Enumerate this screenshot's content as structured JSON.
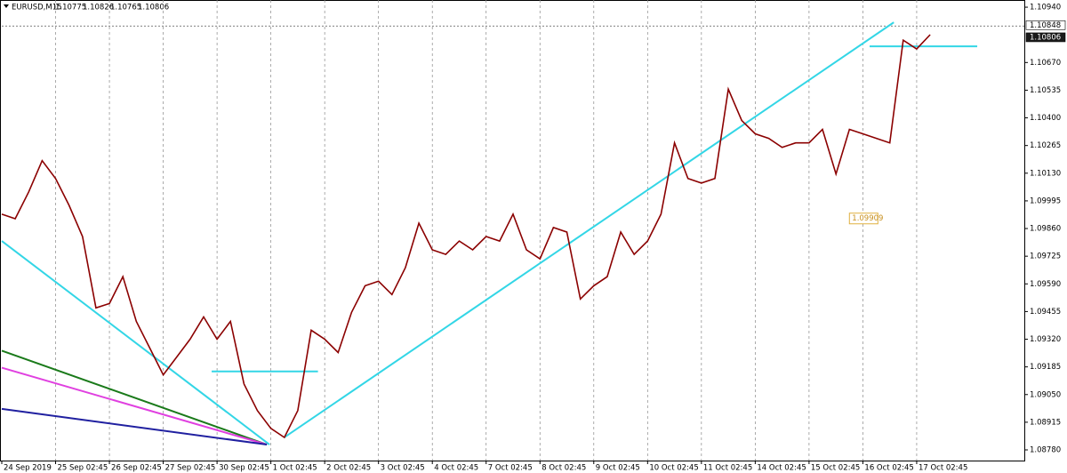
{
  "chart_data": {
    "type": "line",
    "title": "EURUSD,M15",
    "ohlc": [
      1.10775,
      1.10826,
      1.10765,
      1.10806
    ],
    "color": "#8b0000",
    "values": [
      1.0993,
      1.09908,
      1.10039,
      1.10191,
      1.10104,
      1.09973,
      1.09821,
      1.09473,
      1.09494,
      1.09625,
      1.09407,
      1.09277,
      1.09146,
      1.09233,
      1.0932,
      1.09429,
      1.0932,
      1.09407,
      1.09102,
      1.08972,
      1.08885,
      1.08841,
      1.08972,
      1.09364,
      1.0932,
      1.09255,
      1.09451,
      1.09581,
      1.09603,
      1.09538,
      1.09669,
      1.09886,
      1.09756,
      1.09734,
      1.09799,
      1.09756,
      1.09821,
      1.09799,
      1.0993,
      1.09756,
      1.09712,
      1.09865,
      1.09843,
      1.09516,
      1.09581,
      1.09625,
      1.09843,
      1.09734,
      1.09799,
      1.0993,
      1.10278,
      1.10104,
      1.10082,
      1.10104,
      1.1054,
      1.10387,
      1.10322,
      1.103,
      1.10256,
      1.10278,
      1.10278,
      1.10344,
      1.10126,
      1.10344,
      1.10322,
      1.103,
      1.10278,
      1.10779,
      1.10736,
      1.10806
    ],
    "xlim": [
      0,
      76
    ],
    "xticks": [
      {
        "value": 0,
        "label": "24 Sep 2019"
      },
      {
        "value": 4,
        "label": "25 Sep 02:45"
      },
      {
        "value": 8,
        "label": "26 Sep 02:45"
      },
      {
        "value": 12,
        "label": "27 Sep 02:45"
      },
      {
        "value": 16,
        "label": "30 Sep 02:45"
      },
      {
        "value": 20,
        "label": "1 Oct 02:45"
      },
      {
        "value": 24,
        "label": "2 Oct 02:45"
      },
      {
        "value": 28,
        "label": "3 Oct 02:45"
      },
      {
        "value": 32,
        "label": "4 Oct 02:45"
      },
      {
        "value": 36,
        "label": "7 Oct 02:45"
      },
      {
        "value": 40,
        "label": "8 Oct 02:45"
      },
      {
        "value": 44,
        "label": "9 Oct 02:45"
      },
      {
        "value": 48,
        "label": "10 Oct 02:45"
      },
      {
        "value": 52,
        "label": "11 Oct 02:45"
      },
      {
        "value": 56,
        "label": "14 Oct 02:45"
      },
      {
        "value": 60,
        "label": "15 Oct 02:45"
      },
      {
        "value": 64,
        "label": "16 Oct 02:45"
      },
      {
        "value": 68,
        "label": "17 Oct 02:45"
      }
    ],
    "ylim": [
      1.08728,
      1.10975
    ],
    "yticks": [
      {
        "value": 1.1094,
        "label": "1.10940"
      },
      {
        "value": 1.1067,
        "label": "1.10670"
      },
      {
        "value": 1.10535,
        "label": "1.10535"
      },
      {
        "value": 1.104,
        "label": "1.10400"
      },
      {
        "value": 1.10265,
        "label": "1.10265"
      },
      {
        "value": 1.1013,
        "label": "1.10130"
      },
      {
        "value": 1.09995,
        "label": "1.09995"
      },
      {
        "value": 1.0986,
        "label": "1.09860"
      },
      {
        "value": 1.09725,
        "label": "1.09725"
      },
      {
        "value": 1.0959,
        "label": "1.09590"
      },
      {
        "value": 1.09455,
        "label": "1.09455"
      },
      {
        "value": 1.0932,
        "label": "1.09320"
      },
      {
        "value": 1.09185,
        "label": "1.09185"
      },
      {
        "value": 1.0905,
        "label": "1.09050"
      },
      {
        "value": 1.08915,
        "label": "1.08915"
      },
      {
        "value": 1.0878,
        "label": "1.08780"
      }
    ],
    "price_markers": [
      1.10848,
      1.10806
    ],
    "grid": true,
    "trendlines": [
      {
        "color": "#33d6e6",
        "start": [
          0,
          1.09799
        ],
        "end": [
          19.9,
          1.08806
        ]
      },
      {
        "color": "#33d6e6",
        "start": [
          21.0,
          1.08841
        ],
        "end": [
          66.3,
          1.10866
        ]
      },
      {
        "color": "#33d6e6",
        "start": [
          15.6,
          1.09163
        ],
        "end": [
          23.5,
          1.09163
        ]
      },
      {
        "color": "#33d6e6",
        "start": [
          64.5,
          1.10749
        ],
        "end": [
          72.5,
          1.10749
        ]
      },
      {
        "color": "#1a7a1a",
        "start": [
          0,
          1.09264
        ],
        "end": [
          19.7,
          1.08806
        ]
      },
      {
        "color": "#e040e0",
        "start": [
          0,
          1.09181
        ],
        "end": [
          19.7,
          1.08806
        ]
      },
      {
        "color": "#2020a0",
        "start": [
          0,
          1.0898
        ],
        "end": [
          19.7,
          1.08806
        ]
      }
    ],
    "annotation": {
      "text": "1.09909",
      "x": 63.0,
      "y": 1.09909
    }
  }
}
